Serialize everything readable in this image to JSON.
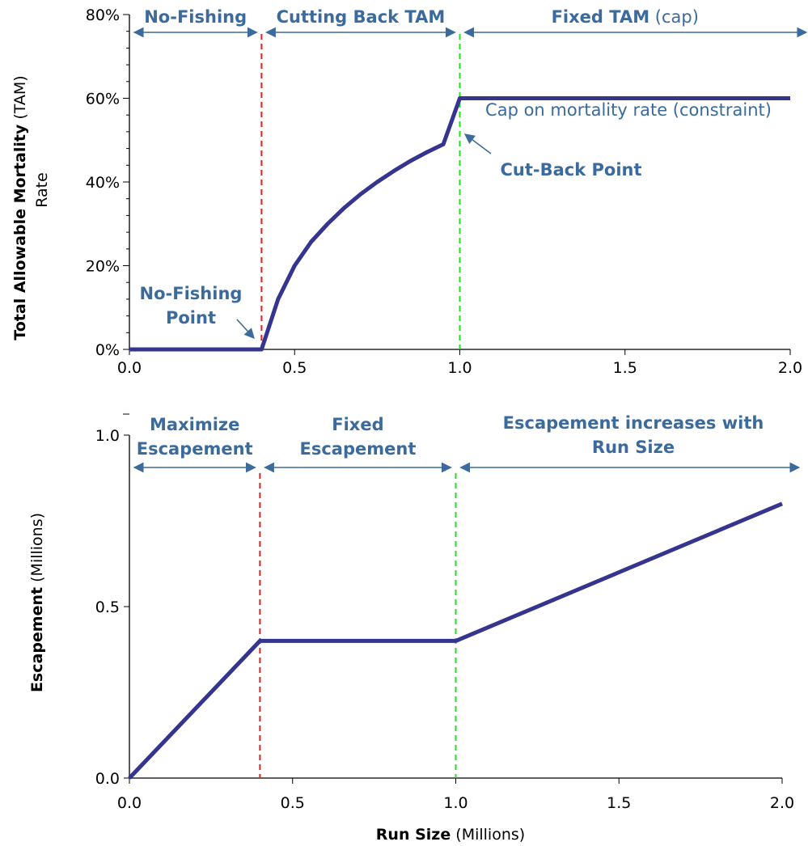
{
  "chart_data": [
    {
      "type": "line",
      "ylabel_bold": "Total Allowable Mortality",
      "ylabel_suffix": "(TAM)",
      "ylabel_line2": "Rate",
      "x_ticks": [
        "0.0",
        "0.5",
        "1.0",
        "1.5",
        "2.0"
      ],
      "y_ticks": [
        "0%",
        "20%",
        "40%",
        "60%",
        "80%"
      ],
      "xlim": [
        0,
        2.0
      ],
      "ylim": [
        0,
        0.8
      ],
      "series": [
        {
          "color": "#35358f",
          "x": [
            0,
            0.4,
            0.45,
            0.5,
            0.55,
            0.6,
            0.65,
            0.7,
            0.75,
            0.8,
            0.85,
            0.9,
            0.95,
            1.0,
            2.0
          ],
          "y": [
            0,
            0,
            0.12,
            0.2,
            0.257,
            0.3,
            0.338,
            0.371,
            0.4,
            0.426,
            0.45,
            0.471,
            0.49,
            0.6,
            0.6
          ]
        }
      ],
      "vlines": [
        {
          "x": 0.4,
          "color": "#e02020"
        },
        {
          "x": 1.0,
          "color": "#22e022"
        }
      ],
      "regions": [
        {
          "label": "No-Fishing",
          "suffix": "",
          "x_from": 0.0,
          "x_to": 0.4
        },
        {
          "label": "Cutting Back TAM",
          "suffix": "",
          "x_from": 0.4,
          "x_to": 1.0
        },
        {
          "label": "Fixed TAM",
          "suffix": "(cap)",
          "x_from": 1.0,
          "x_to": 2.0
        }
      ],
      "annotations": {
        "cap": "Cap on mortality rate (constraint)",
        "cutback": "Cut-Back Point",
        "nofishing_line1": "No-Fishing",
        "nofishing_line2": "Point"
      }
    },
    {
      "type": "line",
      "ylabel_bold": "Escapement",
      "ylabel_suffix": "(Millions)",
      "xlabel_bold": "Run Size",
      "xlabel_suffix": "(Millions)",
      "x_ticks": [
        "0.0",
        "0.5",
        "1.0",
        "1.5",
        "2.0"
      ],
      "y_ticks": [
        "0.0",
        "0.5",
        "1.0"
      ],
      "xlim": [
        0,
        2.0
      ],
      "ylim": [
        0,
        1.0
      ],
      "series": [
        {
          "color": "#35358f",
          "x": [
            0,
            0.4,
            1.0,
            2.0
          ],
          "y": [
            0,
            0.4,
            0.4,
            0.8
          ]
        }
      ],
      "vlines": [
        {
          "x": 0.4,
          "color": "#e02020"
        },
        {
          "x": 1.0,
          "color": "#22e022"
        }
      ],
      "regions": [
        {
          "lines": [
            "Maximize",
            "Escapement"
          ],
          "x_from": 0.0,
          "x_to": 0.4
        },
        {
          "lines": [
            "Fixed",
            "Escapement"
          ],
          "x_from": 0.4,
          "x_to": 1.0
        },
        {
          "lines": [
            "Escapement increases with",
            "Run Size"
          ],
          "x_from": 1.0,
          "x_to": 2.0
        }
      ]
    }
  ]
}
